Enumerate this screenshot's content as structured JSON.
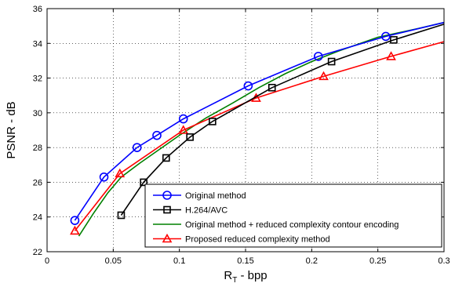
{
  "chart_data": {
    "type": "line",
    "xlabel_main": "R",
    "xlabel_sub": "T",
    "xlabel_rest": " - bpp",
    "ylabel": "PSNR - dB",
    "xlim": [
      0,
      0.3
    ],
    "ylim": [
      22,
      36
    ],
    "xticks": [
      "0",
      "0.05",
      "0.1",
      "0.15",
      "0.2",
      "0.25",
      "0.3"
    ],
    "yticks": [
      "22",
      "24",
      "26",
      "28",
      "30",
      "32",
      "34",
      "36"
    ],
    "grid": true,
    "legend_position": "bottom-right",
    "series": [
      {
        "name": "Original method",
        "color": "#0000ff",
        "marker": "circle",
        "x": [
          0.021,
          0.043,
          0.068,
          0.083,
          0.103,
          0.152,
          0.205,
          0.256,
          0.3
        ],
        "y": [
          23.8,
          26.3,
          28.0,
          28.7,
          29.65,
          31.55,
          33.25,
          34.4,
          35.2
        ],
        "marked": [
          true,
          true,
          true,
          true,
          true,
          true,
          true,
          true,
          false
        ]
      },
      {
        "name": "H.264/AVC",
        "color": "#000000",
        "marker": "square",
        "x": [
          0.056,
          0.073,
          0.09,
          0.108,
          0.125,
          0.17,
          0.215,
          0.262,
          0.3
        ],
        "y": [
          24.1,
          26.0,
          27.4,
          28.6,
          29.5,
          31.45,
          32.95,
          34.2,
          35.1
        ],
        "marked": [
          true,
          true,
          true,
          true,
          true,
          true,
          true,
          true,
          false
        ]
      },
      {
        "name": "Original method + reduced complexity contour encoding",
        "color": "#008000",
        "marker": "none",
        "x": [
          0.024,
          0.035,
          0.046,
          0.056,
          0.07,
          0.085,
          0.1,
          0.12,
          0.14,
          0.16,
          0.18,
          0.2,
          0.22,
          0.25,
          0.28,
          0.3
        ],
        "y": [
          22.9,
          24.2,
          25.4,
          26.3,
          27.1,
          27.9,
          28.7,
          29.7,
          30.55,
          31.45,
          32.25,
          32.95,
          33.55,
          34.35,
          34.85,
          35.2
        ],
        "marked": []
      },
      {
        "name": "Proposed reduced complexity method",
        "color": "#ff0000",
        "marker": "triangle",
        "x": [
          0.021,
          0.055,
          0.103,
          0.158,
          0.209,
          0.26,
          0.3
        ],
        "y": [
          23.2,
          26.5,
          29.0,
          30.85,
          32.1,
          33.25,
          34.1
        ],
        "marked": [
          true,
          true,
          true,
          true,
          true,
          true,
          false
        ]
      }
    ]
  }
}
